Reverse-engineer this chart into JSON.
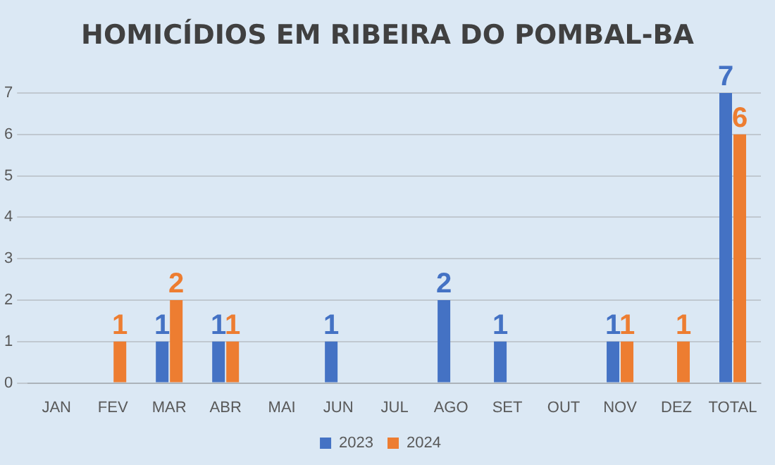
{
  "chart_data": {
    "type": "bar",
    "title": "HOMICÍDIOS EM RIBEIRA DO POMBAL-BA",
    "categories": [
      "JAN",
      "FEV",
      "MAR",
      "ABR",
      "MAI",
      "JUN",
      "JUL",
      "AGO",
      "SET",
      "OUT",
      "NOV",
      "DEZ",
      "TOTAL"
    ],
    "series": [
      {
        "name": "2023",
        "color": "#4472c4",
        "values": [
          0,
          0,
          1,
          1,
          0,
          1,
          0,
          2,
          1,
          0,
          1,
          0,
          7
        ],
        "value_labels": [
          null,
          null,
          "1",
          "1",
          null,
          "1",
          null,
          "2",
          "1",
          null,
          "1",
          null,
          "7"
        ]
      },
      {
        "name": "2024",
        "color": "#ed7d31",
        "values": [
          0,
          1,
          2,
          1,
          0,
          0,
          0,
          0,
          0,
          0,
          1,
          1,
          6
        ],
        "value_labels": [
          null,
          "1",
          "2",
          "1",
          null,
          null,
          null,
          null,
          null,
          null,
          "1",
          "1",
          "6"
        ]
      }
    ],
    "ylim": [
      0,
      7
    ],
    "yticks": [
      0,
      1,
      2,
      3,
      4,
      5,
      6,
      7
    ],
    "grid": "y",
    "legend": "bottom"
  }
}
